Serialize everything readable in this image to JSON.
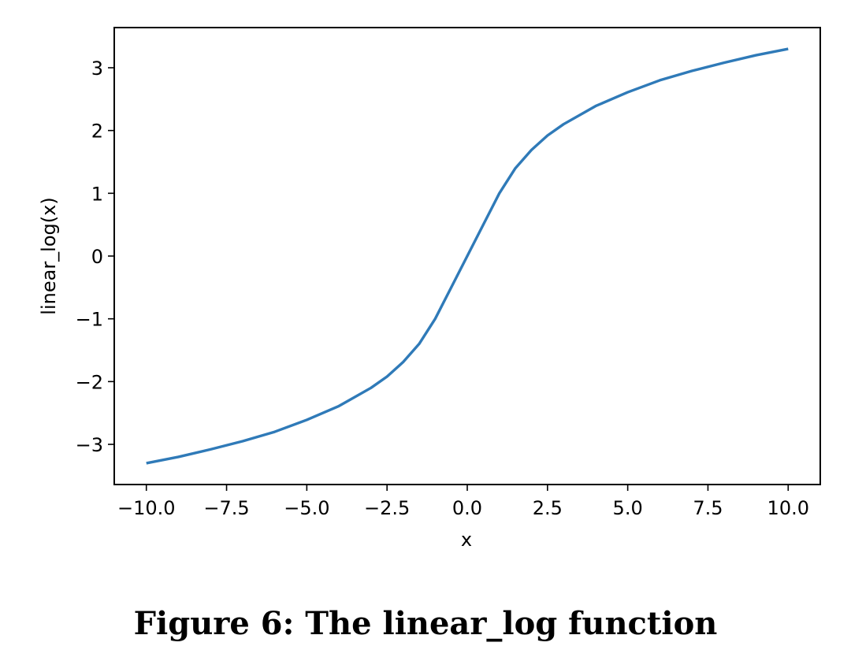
{
  "chart_data": {
    "type": "line",
    "title": "",
    "xlabel": "x",
    "ylabel": "linear_log(x)",
    "xlim": [
      -11.0,
      11.0
    ],
    "ylim": [
      -3.64,
      3.64
    ],
    "xticks": [
      -10.0,
      -7.5,
      -5.0,
      -2.5,
      0.0,
      2.5,
      5.0,
      7.5,
      10.0
    ],
    "xtick_labels": [
      "−10.0",
      "−7.5",
      "−5.0",
      "−2.5",
      "0.0",
      "2.5",
      "5.0",
      "7.5",
      "10.0"
    ],
    "yticks": [
      -3,
      -2,
      -1,
      0,
      1,
      2,
      3
    ],
    "ytick_labels": [
      "−3",
      "−2",
      "−1",
      "0",
      "1",
      "2",
      "3"
    ],
    "grid": false,
    "series": [
      {
        "name": "linear_log(x)",
        "color": "#2f7ab8",
        "x": [
          -10.0,
          -9.0,
          -8.0,
          -7.0,
          -6.0,
          -5.0,
          -4.0,
          -3.0,
          -2.5,
          -2.0,
          -1.5,
          -1.0,
          -0.5,
          0.0,
          0.5,
          1.0,
          1.5,
          2.0,
          2.5,
          3.0,
          4.0,
          5.0,
          6.0,
          7.0,
          8.0,
          9.0,
          10.0
        ],
        "y": [
          -3.3,
          -3.2,
          -3.08,
          -2.95,
          -2.8,
          -2.61,
          -2.39,
          -2.1,
          -1.92,
          -1.69,
          -1.4,
          -1.0,
          -0.5,
          0.0,
          0.5,
          1.0,
          1.4,
          1.69,
          1.92,
          2.1,
          2.39,
          2.61,
          2.8,
          2.95,
          3.08,
          3.2,
          3.3
        ]
      }
    ]
  },
  "caption": "Figure 6: The linear_log function"
}
